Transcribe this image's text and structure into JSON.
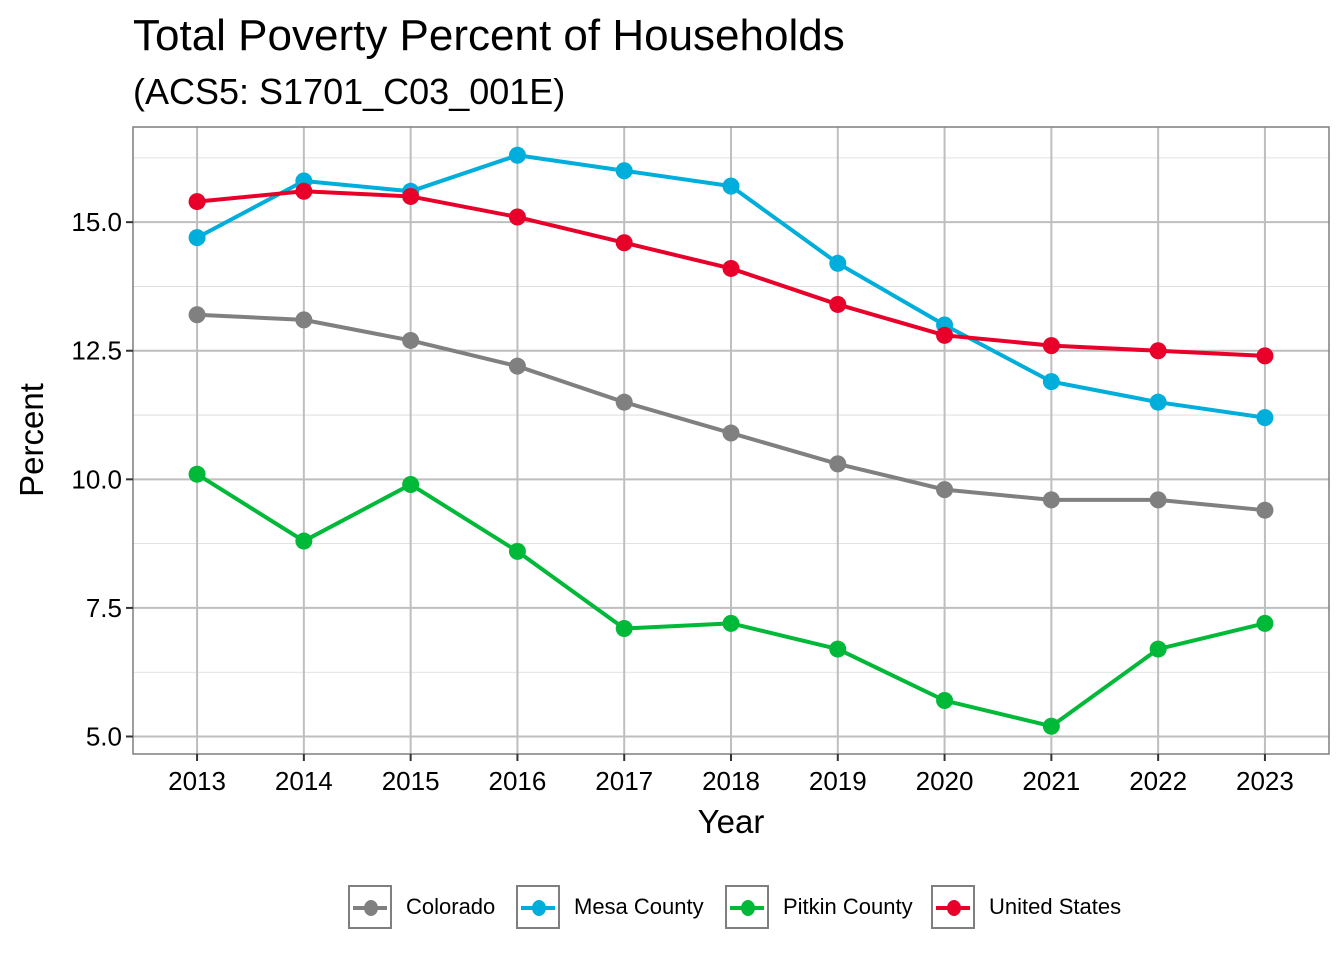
{
  "chart_data": {
    "type": "line",
    "title": "Total Poverty Percent of Households",
    "subtitle": "(ACS5: S1701_C03_001E)",
    "xlabel": "Year",
    "ylabel": "Percent",
    "x": [
      2013,
      2014,
      2015,
      2016,
      2017,
      2018,
      2019,
      2020,
      2021,
      2022,
      2023
    ],
    "xlim": [
      2012.4,
      2023.6
    ],
    "ylim": [
      4.66,
      16.85
    ],
    "yticks": [
      5.0,
      7.5,
      10.0,
      12.5,
      15.0
    ],
    "ytick_labels": [
      "5.0",
      "7.5",
      "10.0",
      "12.5",
      "15.0"
    ],
    "xtick_labels": [
      "2013",
      "2014",
      "2015",
      "2016",
      "2017",
      "2018",
      "2019",
      "2020",
      "2021",
      "2022",
      "2023"
    ],
    "grid": true,
    "legend_position": "bottom",
    "series": [
      {
        "name": "Colorado",
        "color": "#808080",
        "values": [
          13.2,
          13.1,
          12.7,
          12.2,
          11.5,
          10.9,
          10.3,
          9.8,
          9.6,
          9.6,
          9.4
        ]
      },
      {
        "name": "Mesa County",
        "color": "#00AEDB",
        "values": [
          14.7,
          15.8,
          15.6,
          16.3,
          16.0,
          15.7,
          14.2,
          13.0,
          11.9,
          11.5,
          11.2
        ]
      },
      {
        "name": "Pitkin County",
        "color": "#00B938",
        "values": [
          10.1,
          8.8,
          9.9,
          8.6,
          7.1,
          7.2,
          6.7,
          5.7,
          5.2,
          6.7,
          7.2
        ]
      },
      {
        "name": "United States",
        "color": "#E8002B",
        "values": [
          15.4,
          15.6,
          15.5,
          15.1,
          14.6,
          14.1,
          13.4,
          12.8,
          12.6,
          12.5,
          12.4
        ]
      }
    ]
  }
}
